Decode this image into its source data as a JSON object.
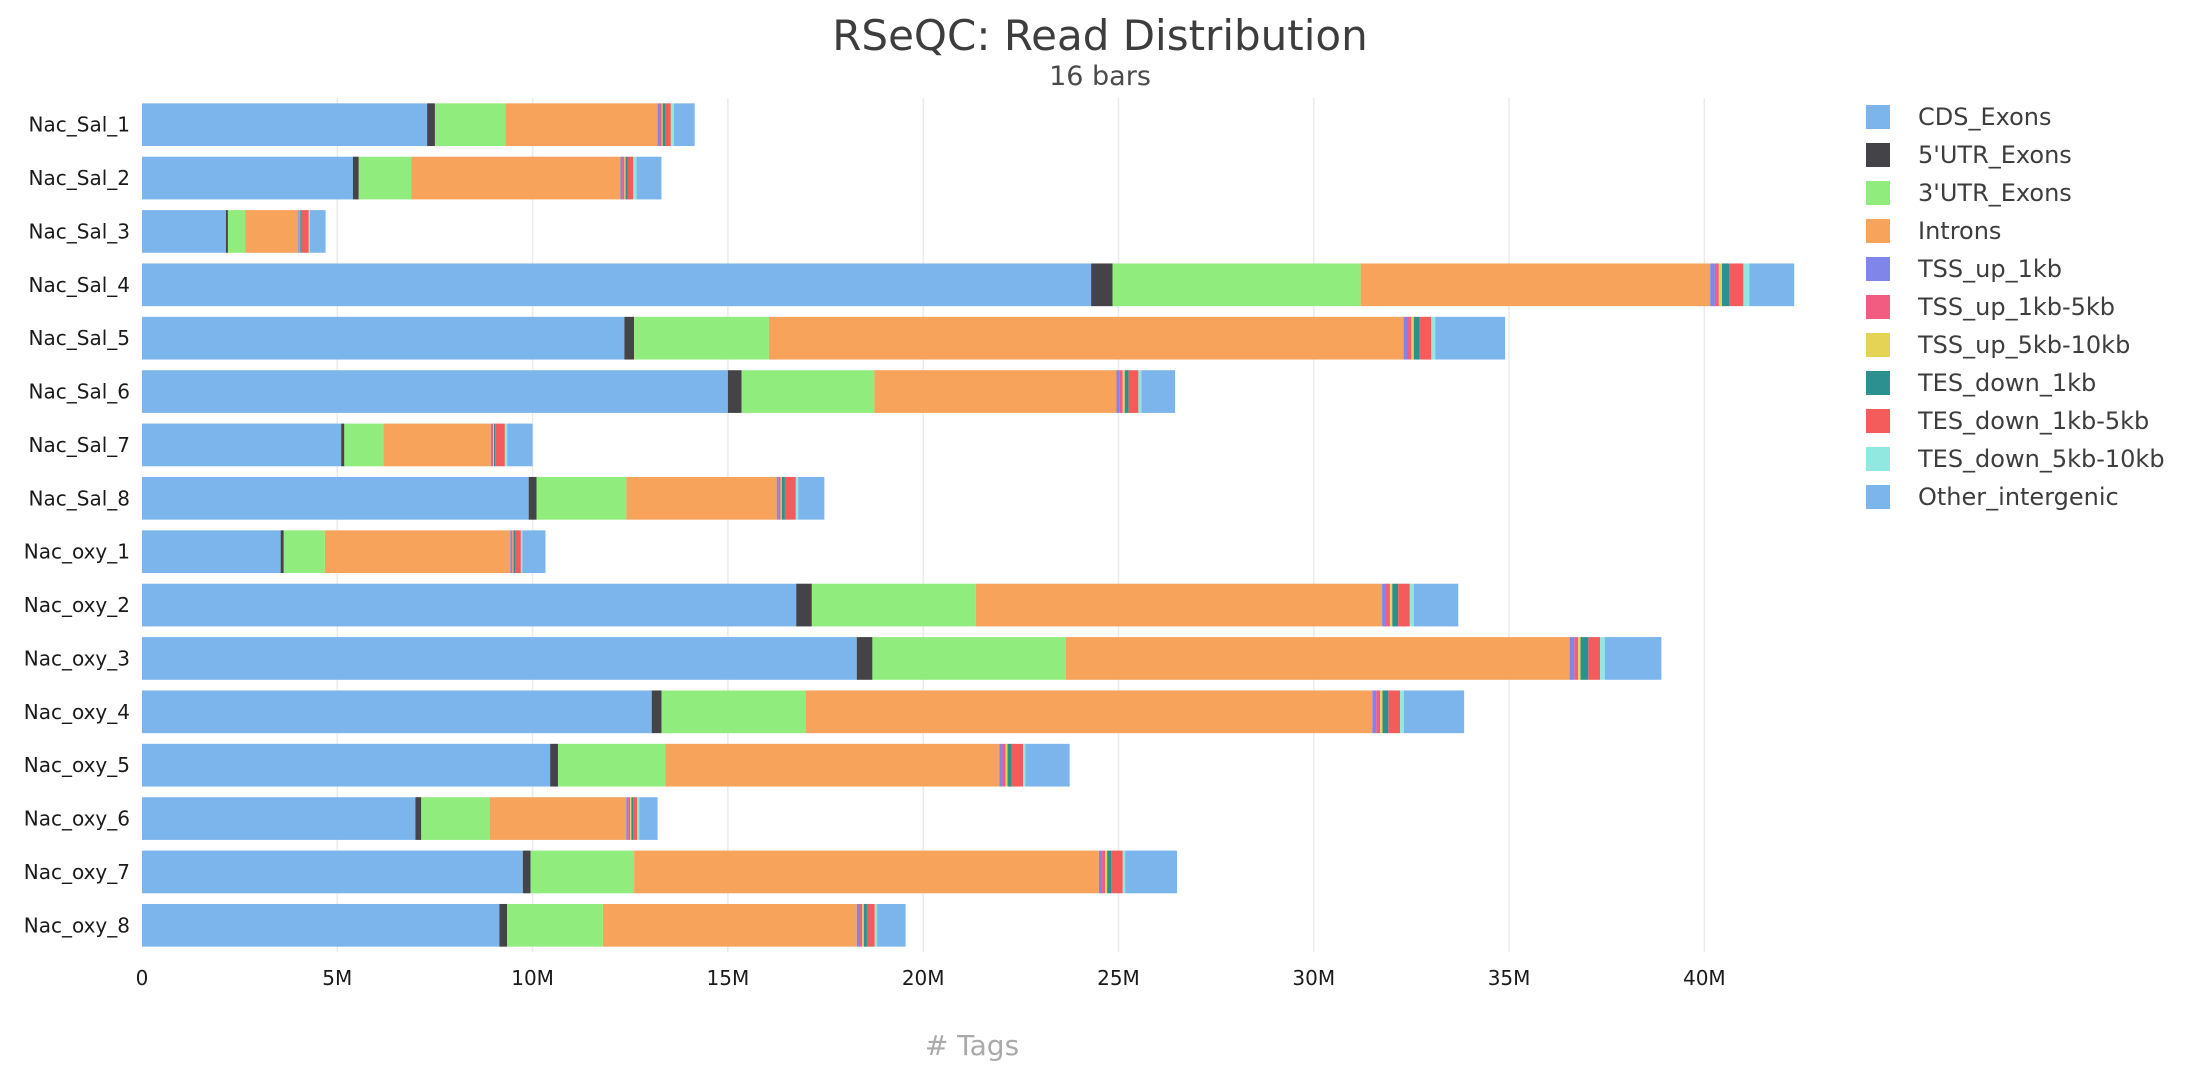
{
  "chart_data": {
    "type": "bar",
    "orientation": "horizontal",
    "stacked": true,
    "title": "RSeQC: Read Distribution",
    "subtitle": "16 bars",
    "xlabel": "# Tags",
    "ylabel": "",
    "xlim": [
      0,
      42500000
    ],
    "xticks": [
      0,
      5000000,
      10000000,
      15000000,
      20000000,
      25000000,
      30000000,
      35000000,
      40000000
    ],
    "xtick_labels": [
      "0",
      "5M",
      "10M",
      "15M",
      "20M",
      "25M",
      "30M",
      "35M",
      "40M"
    ],
    "grid": "vertical",
    "legend_position": "right",
    "categories": [
      "Nac_Sal_1",
      "Nac_Sal_2",
      "Nac_Sal_3",
      "Nac_Sal_4",
      "Nac_Sal_5",
      "Nac_Sal_6",
      "Nac_Sal_7",
      "Nac_Sal_8",
      "Nac_oxy_1",
      "Nac_oxy_2",
      "Nac_oxy_3",
      "Nac_oxy_4",
      "Nac_oxy_5",
      "Nac_oxy_6",
      "Nac_oxy_7",
      "Nac_oxy_8"
    ],
    "series": [
      {
        "name": "CDS_Exons",
        "color": "#7cb5ec",
        "values": [
          7300000,
          5400000,
          2150000,
          24300000,
          12350000,
          15000000,
          5100000,
          9900000,
          3550000,
          16750000,
          18300000,
          13050000,
          10450000,
          7000000,
          9750000,
          9150000
        ]
      },
      {
        "name": "5'UTR_Exons",
        "color": "#434348",
        "values": [
          200000,
          150000,
          50000,
          550000,
          250000,
          350000,
          80000,
          200000,
          80000,
          400000,
          400000,
          250000,
          200000,
          150000,
          200000,
          200000
        ]
      },
      {
        "name": "3'UTR_Exons",
        "color": "#90ed7d",
        "values": [
          1800000,
          1350000,
          450000,
          6350000,
          3450000,
          3400000,
          1000000,
          2300000,
          1050000,
          4200000,
          4950000,
          3700000,
          2750000,
          1750000,
          2650000,
          2450000
        ]
      },
      {
        "name": "Introns",
        "color": "#f7a35c",
        "values": [
          3900000,
          5350000,
          1350000,
          8950000,
          16250000,
          6200000,
          2750000,
          3850000,
          4750000,
          10400000,
          12900000,
          14500000,
          8550000,
          3500000,
          11900000,
          6500000
        ]
      },
      {
        "name": "TSS_up_1kb",
        "color": "#8085e9",
        "values": [
          50000,
          50000,
          20000,
          120000,
          100000,
          80000,
          30000,
          50000,
          30000,
          100000,
          120000,
          100000,
          80000,
          50000,
          80000,
          70000
        ]
      },
      {
        "name": "TSS_up_1kb-5kb",
        "color": "#f15c80",
        "values": [
          50000,
          50000,
          20000,
          100000,
          100000,
          80000,
          30000,
          50000,
          30000,
          100000,
          100000,
          100000,
          80000,
          50000,
          80000,
          70000
        ]
      },
      {
        "name": "TSS_up_5kb-10kb",
        "color": "#e4d354",
        "values": [
          30000,
          30000,
          10000,
          80000,
          60000,
          50000,
          20000,
          30000,
          20000,
          60000,
          60000,
          60000,
          50000,
          30000,
          50000,
          40000
        ]
      },
      {
        "name": "TES_down_1kb",
        "color": "#2b908f",
        "values": [
          60000,
          50000,
          20000,
          200000,
          150000,
          100000,
          30000,
          80000,
          40000,
          150000,
          200000,
          150000,
          100000,
          50000,
          100000,
          80000
        ]
      },
      {
        "name": "TES_down_1kb-5kb",
        "color": "#f45b5b",
        "values": [
          150000,
          150000,
          200000,
          350000,
          300000,
          250000,
          250000,
          280000,
          150000,
          300000,
          300000,
          300000,
          300000,
          100000,
          300000,
          200000
        ]
      },
      {
        "name": "TES_down_5kb-10kb",
        "color": "#91e8e1",
        "values": [
          80000,
          80000,
          30000,
          150000,
          100000,
          80000,
          60000,
          60000,
          40000,
          100000,
          120000,
          100000,
          60000,
          50000,
          60000,
          60000
        ]
      },
      {
        "name": "Other_intergenic",
        "color": "#7cb5ec",
        "values": [
          530000,
          640000,
          400000,
          1150000,
          1790000,
          860000,
          650000,
          670000,
          590000,
          1140000,
          1450000,
          1540000,
          1130000,
          470000,
          1330000,
          730000
        ]
      }
    ]
  }
}
